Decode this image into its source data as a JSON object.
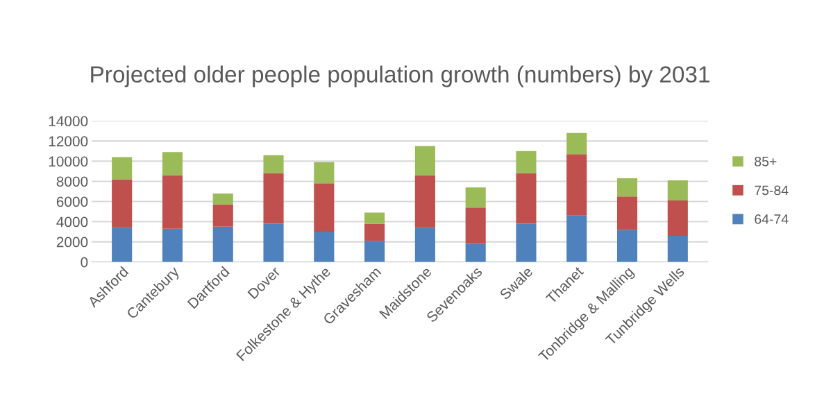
{
  "chart_data": {
    "type": "bar",
    "stacked": true,
    "title": "Projected older people population growth (numbers) by 2031",
    "categories": [
      "Ashford",
      "Cantebury",
      "Dartford",
      "Dover",
      "Folkestone & Hythe",
      "Gravesham",
      "Maidstone",
      "Sevenoaks",
      "Swale",
      "Thanet",
      "Tonbridge & Malling",
      "Tunbridge Wells"
    ],
    "series": [
      {
        "name": "64-74",
        "color": "#4f81bd",
        "values": [
          3400,
          3300,
          3500,
          3800,
          3000,
          2100,
          3400,
          1800,
          3800,
          4600,
          3200,
          2600
        ]
      },
      {
        "name": "75-84",
        "color": "#c0504d",
        "values": [
          4800,
          5300,
          2200,
          5000,
          4800,
          1700,
          5200,
          3600,
          5000,
          6100,
          3300,
          3500
        ]
      },
      {
        "name": "85+",
        "color": "#9bbb59",
        "values": [
          2200,
          2300,
          1100,
          1800,
          2100,
          1100,
          2900,
          2000,
          2200,
          2100,
          1800,
          2000
        ]
      }
    ],
    "ylim": [
      0,
      14000
    ],
    "yticks": [
      0,
      2000,
      4000,
      6000,
      8000,
      10000,
      12000,
      14000
    ],
    "grid": "y",
    "legend": "right"
  }
}
